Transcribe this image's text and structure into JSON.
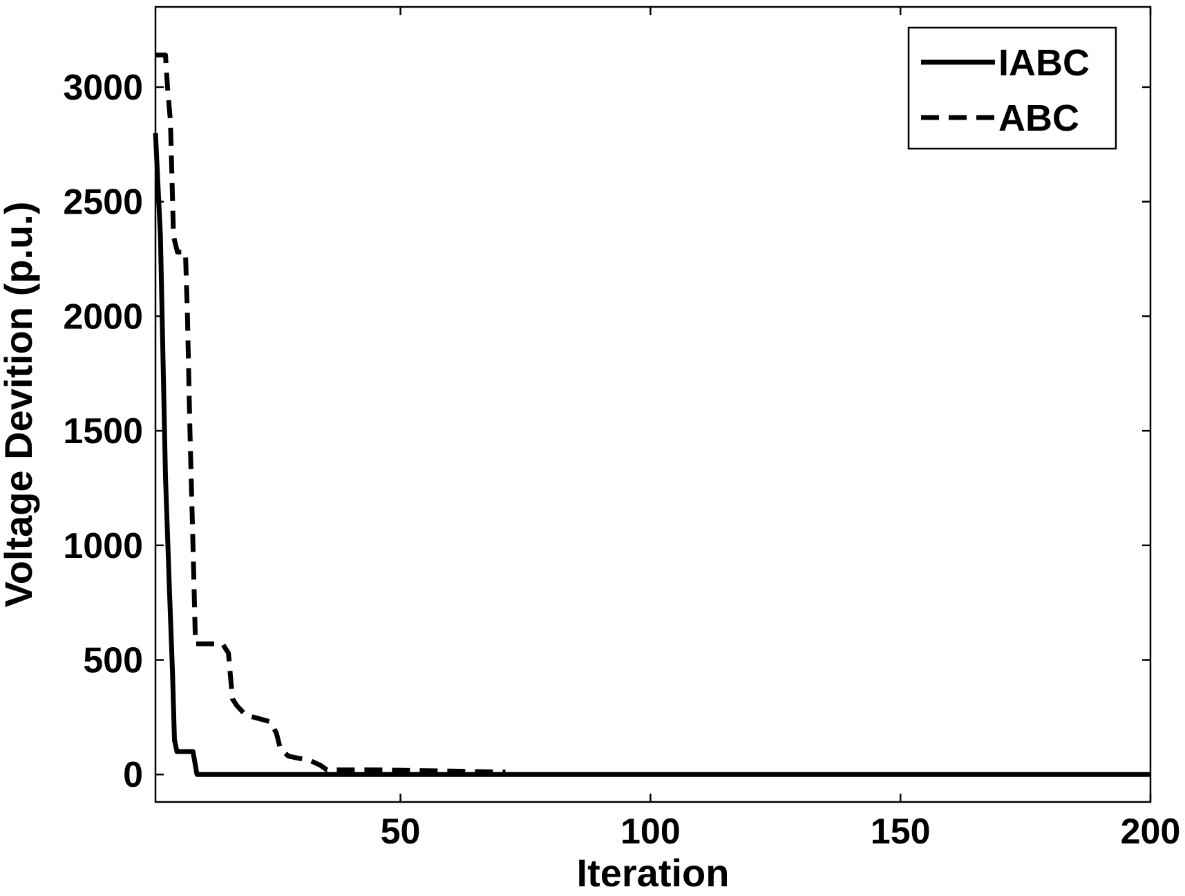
{
  "chart_data": {
    "type": "line",
    "title": "",
    "xlabel": "Iteration",
    "ylabel": "Voltage Devition (p.u.)",
    "xlim": [
      1,
      200
    ],
    "ylim": [
      -120,
      3350
    ],
    "xticks": [
      50,
      100,
      150,
      200
    ],
    "yticks": [
      0,
      500,
      1000,
      1500,
      2000,
      2500,
      3000
    ],
    "grid": false,
    "legend_position": "top-right",
    "series": [
      {
        "name": "IABC",
        "style": "solid",
        "color": "#000000",
        "x": [
          1,
          2,
          3,
          3.8,
          4.4,
          4.8,
          5.3,
          6.0,
          8.5,
          9.3,
          200
        ],
        "y": [
          2800,
          2350,
          1300,
          800,
          450,
          150,
          100,
          100,
          100,
          0,
          0
        ]
      },
      {
        "name": "ABC",
        "style": "dashed",
        "color": "#000000",
        "x": [
          1,
          3,
          3.4,
          4.0,
          4.6,
          5.4,
          6.1,
          7.0,
          7.4,
          7.9,
          8.5,
          9.0,
          14.4,
          15.6,
          16.4,
          17.3,
          19.0,
          24.0,
          25.2,
          26.0,
          27.6,
          32.0,
          34.0,
          35.3,
          45,
          60,
          71
        ],
        "y": [
          3140,
          3140,
          3000,
          2850,
          2350,
          2280,
          2280,
          2280,
          2000,
          1500,
          1000,
          570,
          570,
          530,
          330,
          300,
          260,
          230,
          180,
          110,
          80,
          60,
          40,
          20,
          20,
          15,
          10
        ]
      }
    ]
  }
}
